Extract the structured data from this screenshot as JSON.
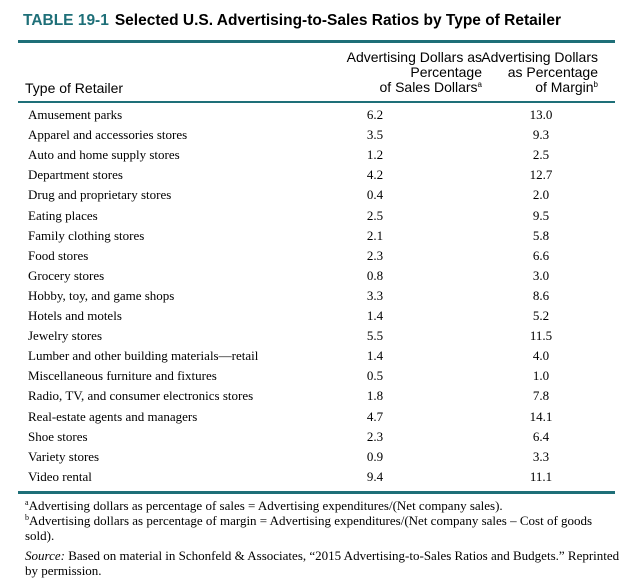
{
  "table": {
    "label": "TABLE 19-1",
    "title": "Selected U.S. Advertising-to-Sales Ratios by Type of Retailer",
    "accent_color": "#1e6f78",
    "header": {
      "col0": "Type of Retailer",
      "col1_lines": [
        "Advertising Dollars as",
        "Percentage",
        "of Sales Dollars"
      ],
      "col1_sup": "a",
      "col2_lines": [
        "Advertising Dollars",
        "as Percentage",
        "of Margin"
      ],
      "col2_sup": "b"
    },
    "rows": [
      {
        "name": "Amusement parks",
        "sales": "6.2",
        "margin": "13.0"
      },
      {
        "name": "Apparel and accessories stores",
        "sales": "3.5",
        "margin": "9.3"
      },
      {
        "name": "Auto and home supply stores",
        "sales": "1.2",
        "margin": "2.5"
      },
      {
        "name": "Department stores",
        "sales": "4.2",
        "margin": "12.7"
      },
      {
        "name": "Drug and proprietary stores",
        "sales": "0.4",
        "margin": "2.0"
      },
      {
        "name": "Eating places",
        "sales": "2.5",
        "margin": "9.5"
      },
      {
        "name": "Family clothing stores",
        "sales": "2.1",
        "margin": "5.8"
      },
      {
        "name": "Food stores",
        "sales": "2.3",
        "margin": "6.6"
      },
      {
        "name": "Grocery stores",
        "sales": "0.8",
        "margin": "3.0"
      },
      {
        "name": "Hobby, toy, and game shops",
        "sales": "3.3",
        "margin": "8.6"
      },
      {
        "name": "Hotels and motels",
        "sales": "1.4",
        "margin": "5.2"
      },
      {
        "name": "Jewelry stores",
        "sales": "5.5",
        "margin": "11.5"
      },
      {
        "name": "Lumber and other building materials—retail",
        "sales": "1.4",
        "margin": "4.0"
      },
      {
        "name": "Miscellaneous furniture and fixtures",
        "sales": "0.5",
        "margin": "1.0"
      },
      {
        "name": "Radio, TV, and consumer electronics stores",
        "sales": "1.8",
        "margin": "7.8"
      },
      {
        "name": "Real-estate agents and managers",
        "sales": "4.7",
        "margin": "14.1"
      },
      {
        "name": "Shoe stores",
        "sales": "2.3",
        "margin": "6.4"
      },
      {
        "name": "Variety stores",
        "sales": "0.9",
        "margin": "3.3"
      },
      {
        "name": "Video rental",
        "sales": "9.4",
        "margin": "11.1"
      }
    ],
    "notes": {
      "note_a_sup": "a",
      "note_a": "Advertising dollars as percentage of sales = Advertising expenditures/(Net company sales).",
      "note_b_sup": "b",
      "note_b": "Advertising dollars as percentage of margin = Advertising expenditures/(Net company sales – Cost of goods sold).",
      "source_label": "Source:",
      "source_text": "Based on material in Schonfeld & Associates, “2015 Advertising-to-Sales Ratios and Budgets.” Reprinted by permission."
    }
  }
}
